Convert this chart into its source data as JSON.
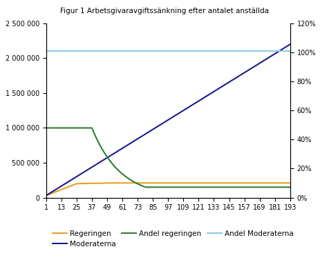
{
  "title": "Figur 1 Arbetsgivaravgiftssänkning efter antalet anställda",
  "x_ticks": [
    1,
    13,
    25,
    37,
    49,
    61,
    73,
    85,
    97,
    109,
    121,
    133,
    145,
    157,
    169,
    181,
    193
  ],
  "x_min": 1,
  "x_max": 193,
  "y_left_min": 0,
  "y_left_max": 2500000,
  "y_right_min": 0.0,
  "y_right_max": 1.2,
  "y_left_ticks": [
    0,
    500000,
    1000000,
    1500000,
    2000000,
    2500000
  ],
  "y_right_ticks": [
    0.0,
    0.2,
    0.4,
    0.6,
    0.8,
    1.0,
    1.2
  ],
  "color_regeringen": "#e8a020",
  "color_moderaterna": "#1a1a8c",
  "color_andel_reg": "#2e7d32",
  "color_andel_mod": "#87ceeb",
  "legend_labels": [
    "Regeringen",
    "Moderaterna",
    "Andel regeringen",
    "Andel Moderaterna"
  ],
  "background_color": "#ffffff",
  "title_fontsize": 7.5,
  "tick_fontsize": 7,
  "legend_fontsize": 7.5,
  "linewidth": 1.5
}
